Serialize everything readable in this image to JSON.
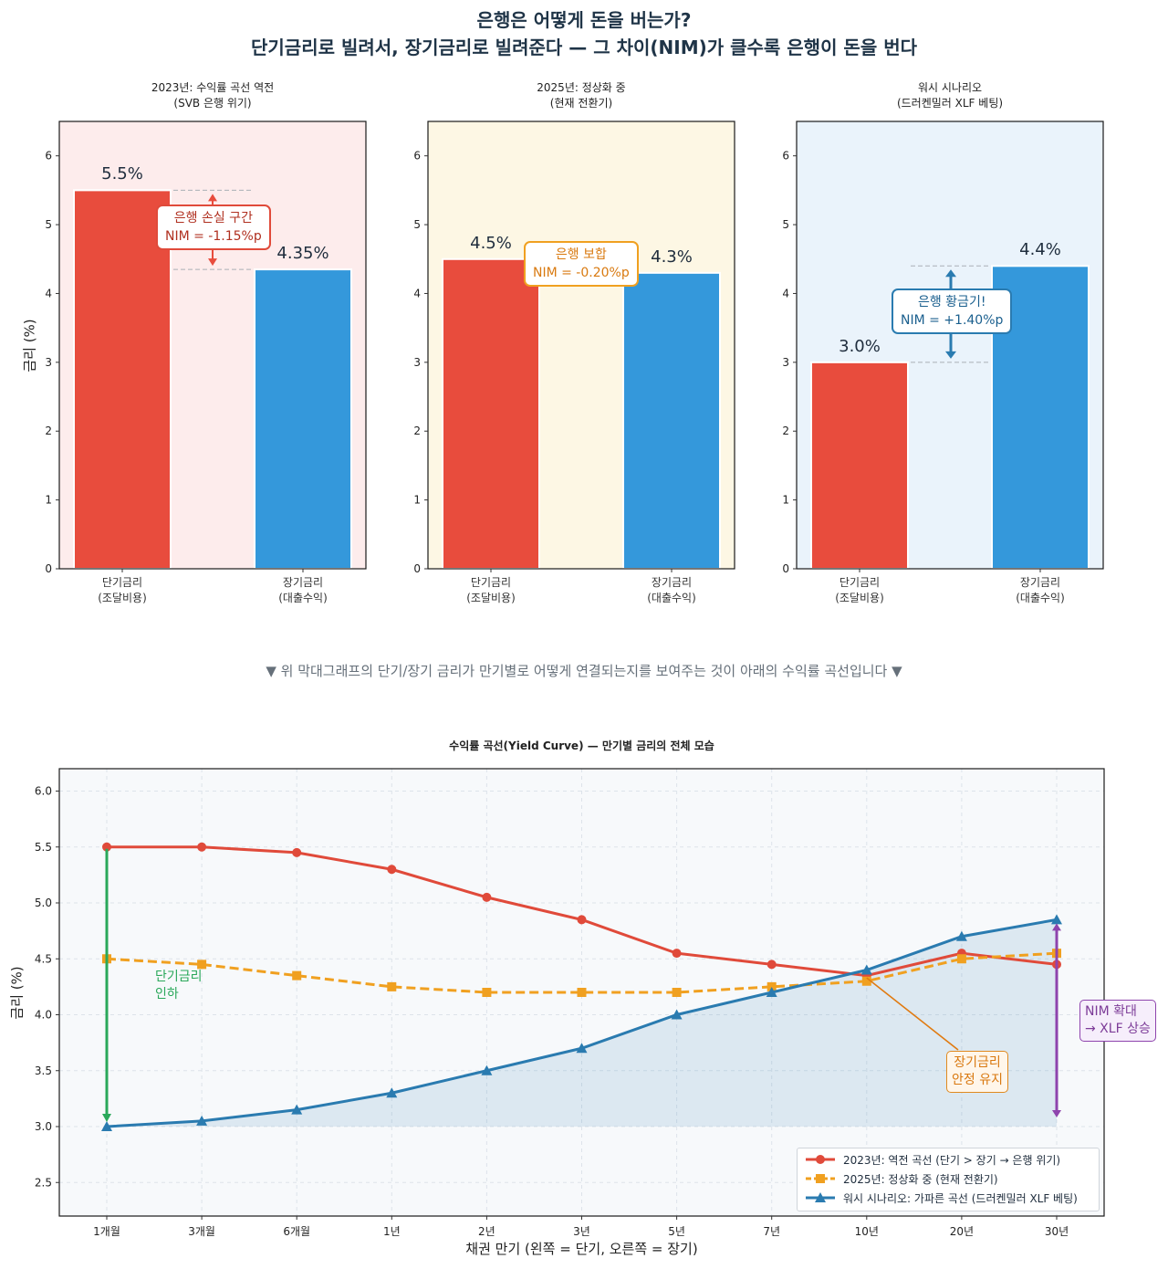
{
  "suptitle": {
    "line1": "은행은 어떻게 돈을 버는가?",
    "line2": "단기금리로 빌려서, 장기금리로 빌려준다 — 그 차이(NIM)가 클수록 은행이 돈을 번다"
  },
  "colors": {
    "short": "#e84c3d",
    "long": "#3498db",
    "curve2023": "#e04a3a",
    "curve2025": "#f0a020",
    "curveWish": "#2a7bb0",
    "panelPink": "#fdecec",
    "panelYellow": "#fdf7e4",
    "panelBlue": "#eaf3fb",
    "green": "#2aa85a",
    "purple": "#8e44ad"
  },
  "bar_ylabel": "금리 (%)",
  "note": "▼ 위 막대그래프의 단기/장기 금리가 만기별로 어떻게 연결되는지를 보여주는 것이 아래의 수익률 곡선입니다 ▼",
  "chart_data": [
    {
      "type": "bar",
      "title": "2023년: 수익률 곡선 역전\n(SVB 은행 위기)",
      "title_line1": "2023년: 수익률 곡선 역전",
      "title_line2": "(SVB 은행 위기)",
      "categories": [
        "단기금리\n(조달비용)",
        "장기금리\n(대출수익)"
      ],
      "cat_line1": [
        "단기금리",
        "장기금리"
      ],
      "cat_line2": [
        "(조달비용)",
        "(대출수익)"
      ],
      "values": [
        5.5,
        4.35
      ],
      "value_labels": [
        "5.5%",
        "4.35%"
      ],
      "ylim": [
        0,
        6.5
      ],
      "yticks": [
        0,
        1,
        2,
        3,
        4,
        5,
        6
      ],
      "ylabel": "금리 (%)",
      "annotation": {
        "line1": "은행 손실 구간",
        "line2": "NIM = -1.15%p"
      }
    },
    {
      "type": "bar",
      "title": "2025년: 정상화 중\n(현재 전환기)",
      "title_line1": "2025년: 정상화 중",
      "title_line2": "(현재 전환기)",
      "categories": [
        "단기금리\n(조달비용)",
        "장기금리\n(대출수익)"
      ],
      "cat_line1": [
        "단기금리",
        "장기금리"
      ],
      "cat_line2": [
        "(조달비용)",
        "(대출수익)"
      ],
      "values": [
        4.5,
        4.3
      ],
      "value_labels": [
        "4.5%",
        "4.3%"
      ],
      "ylim": [
        0,
        6.5
      ],
      "yticks": [
        0,
        1,
        2,
        3,
        4,
        5,
        6
      ],
      "annotation": {
        "line1": "은행 보합",
        "line2": "NIM = -0.20%p"
      }
    },
    {
      "type": "bar",
      "title": "워시 시나리오\n(드러켄밀러 XLF 베팅)",
      "title_line1": "워시 시나리오",
      "title_line2": "(드러켄밀러 XLF 베팅)",
      "categories": [
        "단기금리\n(조달비용)",
        "장기금리\n(대출수익)"
      ],
      "cat_line1": [
        "단기금리",
        "장기금리"
      ],
      "cat_line2": [
        "(조달비용)",
        "(대출수익)"
      ],
      "values": [
        3.0,
        4.4
      ],
      "value_labels": [
        "3.0%",
        "4.4%"
      ],
      "ylim": [
        0,
        6.5
      ],
      "yticks": [
        0,
        1,
        2,
        3,
        4,
        5,
        6
      ],
      "annotation": {
        "line1": "은행 황금기!",
        "line2": "NIM = +1.40%p"
      }
    },
    {
      "type": "line",
      "title": "수익률 곡선(Yield Curve) — 만기별 금리의 전체 모습",
      "xlabel": "채권 만기 (왼쪽 = 단기, 오른쪽 = 장기)",
      "ylabel": "금리 (%)",
      "categories": [
        "1개월",
        "3개월",
        "6개월",
        "1년",
        "2년",
        "3년",
        "5년",
        "7년",
        "10년",
        "20년",
        "30년"
      ],
      "ylim": [
        2.2,
        6.2
      ],
      "yticks": [
        2.5,
        3.0,
        3.5,
        4.0,
        4.5,
        5.0,
        5.5,
        6.0
      ],
      "ytick_labels": [
        "2.5",
        "3.0",
        "3.5",
        "4.0",
        "4.5",
        "5.0",
        "5.5",
        "6.0"
      ],
      "grid": true,
      "legend_position": "lower-right",
      "series": [
        {
          "name": "2023년: 역전 곡선 (단기 > 장기 → 은행 위기)",
          "marker": "circle",
          "style": "solid",
          "values": [
            5.5,
            5.5,
            5.45,
            5.3,
            5.05,
            4.85,
            4.55,
            4.45,
            4.35,
            4.55,
            4.45
          ]
        },
        {
          "name": "2025년: 정상화 중 (현재 전환기)",
          "marker": "square",
          "style": "dashed",
          "values": [
            4.5,
            4.45,
            4.35,
            4.25,
            4.2,
            4.2,
            4.2,
            4.25,
            4.3,
            4.5,
            4.55
          ]
        },
        {
          "name": "워시 시나리오: 가파른 곡선 (드러켄밀러 XLF 베팅)",
          "marker": "triangle",
          "style": "solid",
          "values": [
            3.0,
            3.05,
            3.15,
            3.3,
            3.5,
            3.7,
            4.0,
            4.2,
            4.4,
            4.7,
            4.85
          ]
        }
      ],
      "annotations": {
        "rate_cut": {
          "line1": "단기금리",
          "line2": "인하"
        },
        "long_stable": {
          "line1": "장기금리",
          "line2": "안정 유지"
        },
        "nim_expand": {
          "line1": "NIM 확대",
          "line2": "→ XLF 상승"
        }
      }
    }
  ]
}
